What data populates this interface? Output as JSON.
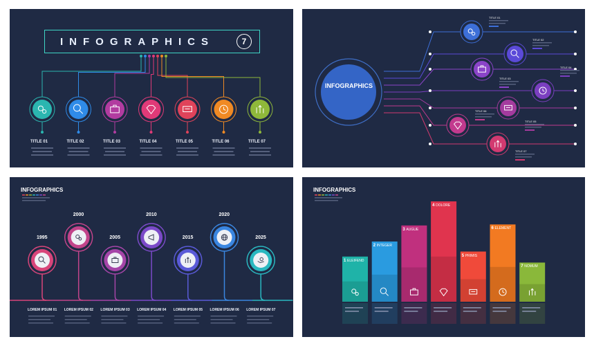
{
  "panel1": {
    "heading": "INFOGRAPHICS",
    "number": "7",
    "items": [
      {
        "title": "TITLE 01",
        "color": "#2bb6b0",
        "icon": "gears-icon"
      },
      {
        "title": "TITLE 02",
        "color": "#2f8be8",
        "icon": "search-icon"
      },
      {
        "title": "TITLE 03",
        "color": "#b23ca0",
        "icon": "briefcase-icon"
      },
      {
        "title": "TITLE 04",
        "color": "#e03a78",
        "icon": "diamond-icon"
      },
      {
        "title": "TITLE 05",
        "color": "#e0435a",
        "icon": "chat-icon"
      },
      {
        "title": "TITLE 06",
        "color": "#f08a24",
        "icon": "clock-icon"
      },
      {
        "title": "TITLE 07",
        "color": "#8fb83a",
        "icon": "growth-arrows-icon"
      }
    ]
  },
  "panel2": {
    "heading": "INFOGRAPHICS",
    "items": [
      {
        "title": "TITLE 01",
        "color": "#3d6fd8",
        "icon": "gears-icon"
      },
      {
        "title": "TITLE 02",
        "color": "#5b4ad8",
        "icon": "search-icon"
      },
      {
        "title": "TITLE 03",
        "color": "#8b44c8",
        "icon": "briefcase-icon"
      },
      {
        "title": "TITLE 04",
        "color": "#7b3fc0",
        "icon": "clock-icon"
      },
      {
        "title": "TITLE 05",
        "color": "#a43b9e",
        "icon": "chat-icon"
      },
      {
        "title": "TITLE 06",
        "color": "#c23a8e",
        "icon": "diamond-icon"
      },
      {
        "title": "TITLE 07",
        "color": "#d23a70",
        "icon": "growth-arrows-icon"
      }
    ]
  },
  "panel3": {
    "heading": "INFOGRAPHICS",
    "items": [
      {
        "year": "1995",
        "label": "LOREM IPSUM 01",
        "color": "#d8457a",
        "icon": "search-icon"
      },
      {
        "year": "2000",
        "label": "LOREM IPSUM 02",
        "color": "#c2448a",
        "icon": "gears-icon"
      },
      {
        "year": "2005",
        "label": "LOREM IPSUM 03",
        "color": "#a545a8",
        "icon": "briefcase-icon"
      },
      {
        "year": "2010",
        "label": "LOREM IPSUM 04",
        "color": "#7b4ac8",
        "icon": "megaphone-icon"
      },
      {
        "year": "2015",
        "label": "LOREM IPSUM 05",
        "color": "#5a5ad8",
        "icon": "growth-arrows-icon"
      },
      {
        "year": "2020",
        "label": "LOREM IPSUM 06",
        "color": "#3a86e0",
        "icon": "globe-icon"
      },
      {
        "year": "2025",
        "label": "LOREM IPSUM 07",
        "color": "#2ab8c0",
        "icon": "hand-coin-icon"
      }
    ]
  },
  "panel4": {
    "heading": "INFOGRAPHICS",
    "bars": [
      {
        "num": "1",
        "label": "ELEIFEND",
        "color": "#1fb3a8",
        "level": 0.45,
        "icon": "gears-icon"
      },
      {
        "num": "2",
        "label": "INTEGER",
        "color": "#2a9be0",
        "level": 0.6,
        "icon": "search-icon"
      },
      {
        "num": "3",
        "label": "AUGUE",
        "color": "#c0307e",
        "level": 0.76,
        "icon": "briefcase-icon"
      },
      {
        "num": "4",
        "label": "DOLORE",
        "color": "#e0344e",
        "level": 1.0,
        "icon": "diamond-icon"
      },
      {
        "num": "5",
        "label": "PRIMIS",
        "color": "#f04a3a",
        "level": 0.5,
        "icon": "chat-icon"
      },
      {
        "num": "6",
        "label": "ELEMENT",
        "color": "#f27a22",
        "level": 0.77,
        "icon": "clock-icon"
      },
      {
        "num": "7",
        "label": "NOMUM",
        "color": "#8ab83a",
        "level": 0.39,
        "icon": "growth-arrows-icon"
      }
    ]
  }
}
